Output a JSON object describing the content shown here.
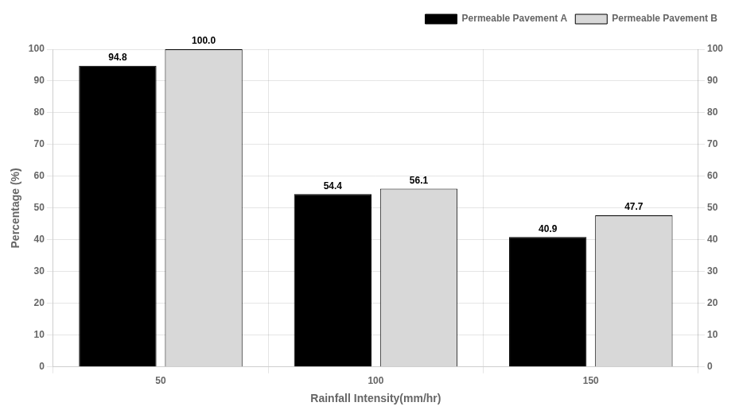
{
  "chart_data": {
    "type": "bar",
    "categories": [
      "50",
      "100",
      "150"
    ],
    "series": [
      {
        "name": "Permeable Pavement A",
        "color": "#000000",
        "values": [
          94.8,
          54.4,
          40.9
        ]
      },
      {
        "name": "Permeable Pavement B",
        "color": "#d8d8d8",
        "values": [
          100.0,
          56.1,
          47.7
        ],
        "value_labels": [
          "100.0",
          "56.1",
          "47.7"
        ]
      }
    ],
    "xlabel": "Rainfall Intensity(mm/hr)",
    "ylabel": "Percentage (%)",
    "ylim": [
      0,
      100
    ],
    "yticks": [
      0,
      10,
      20,
      30,
      40,
      50,
      60,
      70,
      80,
      90,
      100
    ],
    "y2lim": [
      0,
      100
    ],
    "y2ticks": [
      0,
      10,
      20,
      30,
      40,
      50,
      60,
      70,
      80,
      90,
      100
    ],
    "grid": true,
    "legend": "upper right",
    "data_labels": true
  }
}
